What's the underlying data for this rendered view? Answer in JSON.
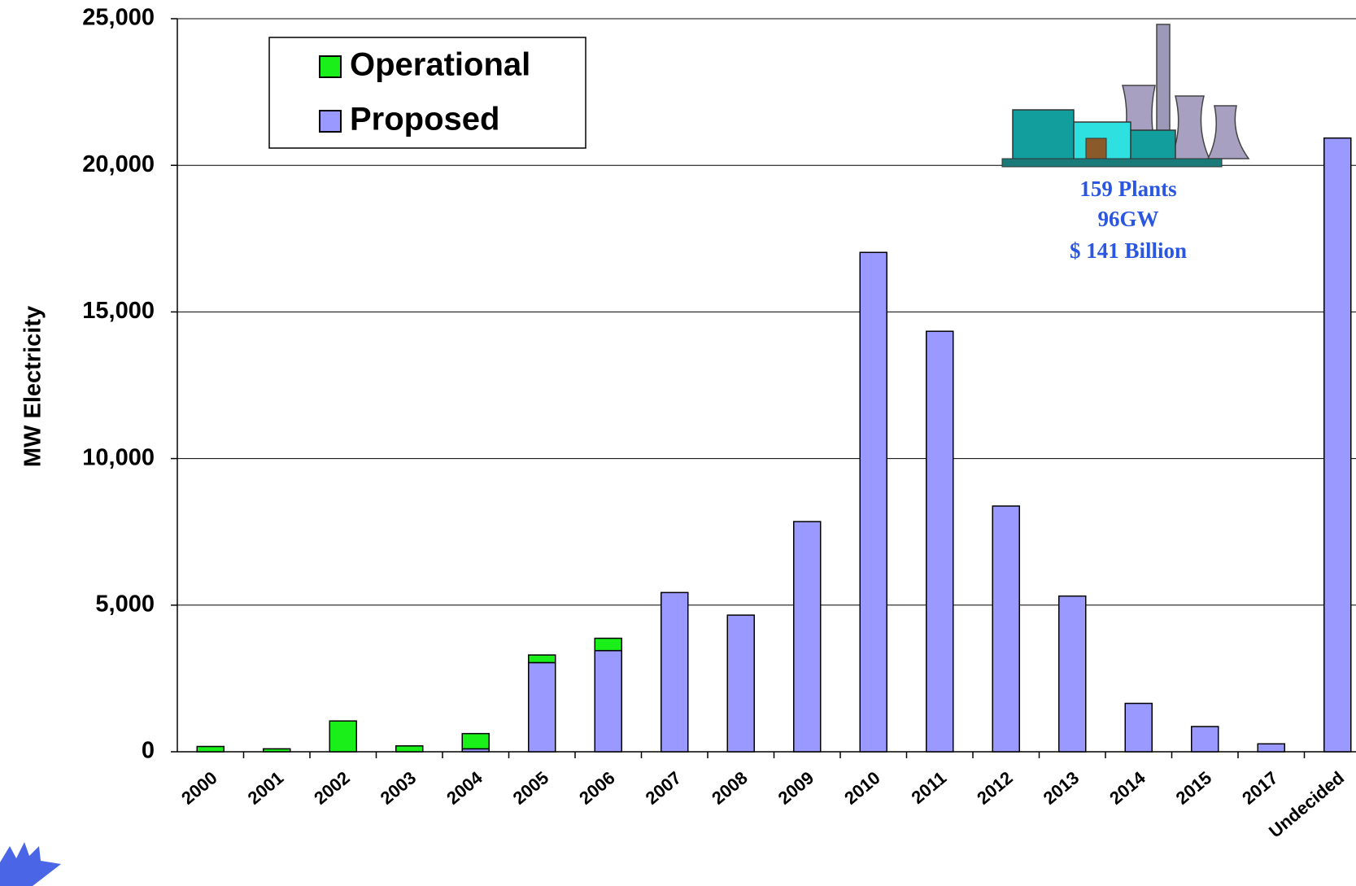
{
  "chart_data": {
    "type": "stacked_bar",
    "y_label": "MW Electricity",
    "categories": [
      "2000",
      "2001",
      "2002",
      "2003",
      "2004",
      "2005",
      "2006",
      "2007",
      "2008",
      "2009",
      "2010",
      "2011",
      "2012",
      "2013",
      "2014",
      "2015",
      "2017",
      "Undecided"
    ],
    "series": [
      {
        "name": "Operational",
        "color": "#1aef1a",
        "values": [
          180,
          100,
          1050,
          200,
          520,
          260,
          420,
          0,
          0,
          0,
          0,
          0,
          0,
          0,
          0,
          0,
          0,
          0
        ]
      },
      {
        "name": "Proposed",
        "color": "#9999ff",
        "values": [
          0,
          0,
          0,
          0,
          100,
          3040,
          3450,
          5430,
          4660,
          7850,
          17030,
          14340,
          8380,
          5310,
          1650,
          860,
          270,
          20930
        ]
      }
    ],
    "stack_order": [
      "Proposed",
      "Operational"
    ],
    "ylim": [
      0,
      25000
    ],
    "yticks": [
      0,
      {
        "value": 5000,
        "label": "5,000"
      },
      {
        "value": 10000,
        "label": "10,000"
      },
      {
        "value": 15000,
        "label": "15,000"
      },
      {
        "value": 20000,
        "label": "20,000"
      },
      {
        "value": 25000,
        "label": "25,000"
      }
    ],
    "grid": true,
    "annotations": [
      "159 Plants",
      "96GW",
      "$  141 Billion"
    ]
  }
}
